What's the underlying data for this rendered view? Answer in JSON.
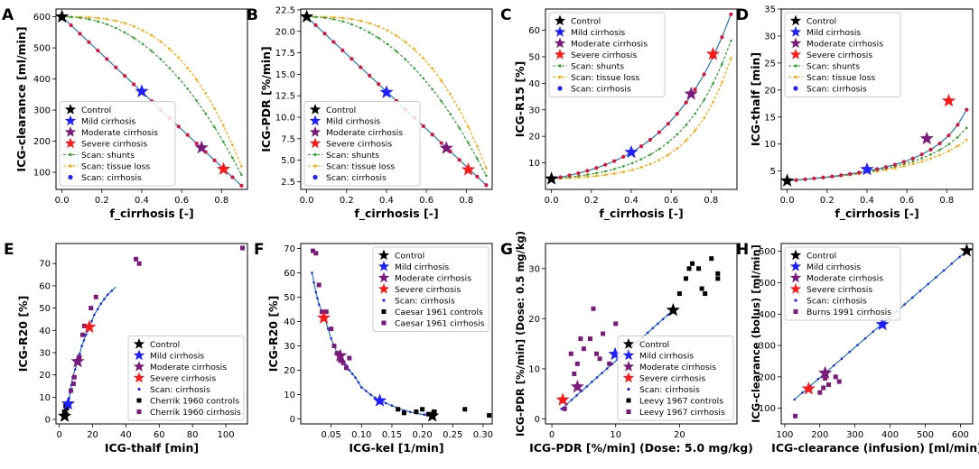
{
  "figure": {
    "legend_labels": {
      "control": "Control",
      "mild": "Mild cirrhosis",
      "moderate": "Moderate cirrhosis",
      "severe": "Severe cirrhosis",
      "shunts": "Scan: shunts",
      "tissue": "Scan: tissue loss",
      "cirrhosis": "Scan: cirrhosis"
    },
    "colors": {
      "control": "#000000",
      "mild": "#1f1fff",
      "moderate": "#7b1a7b",
      "severe": "#ff1a1a",
      "curve": "#1f77b4",
      "shunts": "#2ca02c",
      "tissue": "#ffa500",
      "scan_point_cirrhosis": "#1f1fff",
      "scan_point_dense": "#e0113c",
      "data_controls": "#000000",
      "data_cirrhosis": "#7b1a7b"
    }
  },
  "chart_data": [
    {
      "panel": "A",
      "type": "line",
      "xlabel": "f_cirrhosis [-]",
      "ylabel": "ICG-clearance [ml/min]",
      "xlim": [
        -0.03,
        0.93
      ],
      "ylim": [
        45,
        625
      ],
      "xticks": [
        0.0,
        0.2,
        0.4,
        0.6,
        0.8
      ],
      "yticks": [
        100,
        200,
        300,
        400,
        500,
        600
      ],
      "tick_decimals": 1,
      "ytick_decimals": 0,
      "legend": [
        "control",
        "mild",
        "moderate",
        "severe",
        "shunts",
        "tissue",
        "cirrhosis"
      ],
      "legend_pos": "bottom-left",
      "curves": {
        "cirrhosis": [
          600,
          57
        ],
        "shunts": [
          600,
          92
        ],
        "tissue": [
          600,
          120
        ]
      },
      "curve_power": {
        "cirrhosis": 1.0,
        "shunts": 2.2,
        "tissue": 3.0
      },
      "stars": {
        "control": [
          0.0,
          600
        ],
        "mild": [
          0.4,
          360
        ],
        "moderate": [
          0.7,
          179
        ],
        "severe": [
          0.81,
          110
        ]
      }
    },
    {
      "panel": "B",
      "type": "line",
      "xlabel": "f_cirrhosis [-]",
      "ylabel": "ICG-PDR [%/min]",
      "xlim": [
        -0.03,
        0.93
      ],
      "ylim": [
        1.6,
        22.6
      ],
      "xticks": [
        0.0,
        0.2,
        0.4,
        0.6,
        0.8
      ],
      "yticks": [
        2.5,
        5.0,
        7.5,
        10.0,
        12.5,
        15.0,
        17.5,
        20.0,
        22.5
      ],
      "tick_decimals": 1,
      "ytick_decimals": 1,
      "legend": [
        "control",
        "mild",
        "moderate",
        "severe",
        "shunts",
        "tissue",
        "cirrhosis"
      ],
      "legend_pos": "bottom-left",
      "curves": {
        "cirrhosis": [
          21.7,
          2.1
        ],
        "shunts": [
          21.7,
          3.2
        ],
        "tissue": [
          21.7,
          4.1
        ]
      },
      "curve_power": {
        "cirrhosis": 1.0,
        "shunts": 2.2,
        "tissue": 3.0
      },
      "stars": {
        "control": [
          0.0,
          21.7
        ],
        "mild": [
          0.4,
          12.9
        ],
        "moderate": [
          0.7,
          6.4
        ],
        "severe": [
          0.81,
          3.9
        ]
      }
    },
    {
      "panel": "C",
      "type": "line",
      "xlabel": "f_cirrhosis [-]",
      "ylabel": "ICG-R15 [%]",
      "xlim": [
        -0.03,
        0.93
      ],
      "ylim": [
        0,
        68
      ],
      "xticks": [
        0.0,
        0.2,
        0.4,
        0.6,
        0.8
      ],
      "yticks": [
        10,
        20,
        30,
        40,
        50,
        60
      ],
      "tick_decimals": 1,
      "ytick_decimals": 0,
      "legend": [
        "control",
        "mild",
        "moderate",
        "severe",
        "shunts",
        "tissue",
        "cirrhosis"
      ],
      "legend_pos": "top-left",
      "exp_curves": {
        "cirrhosis": [
          4,
          66
        ],
        "shunts": [
          4,
          56
        ],
        "tissue": [
          4,
          49.5
        ]
      },
      "exp_power": {
        "cirrhosis": 2.8,
        "shunts": 3.6,
        "tissue": 4.5
      },
      "stars": {
        "control": [
          0.0,
          4
        ],
        "mild": [
          0.4,
          14
        ],
        "moderate": [
          0.7,
          36
        ],
        "severe": [
          0.81,
          51
        ]
      }
    },
    {
      "panel": "D",
      "type": "line",
      "xlabel": "f_cirrhosis [-]",
      "ylabel": "ICG-thalf [min]",
      "xlim": [
        -0.03,
        0.93
      ],
      "ylim": [
        1.6,
        35
      ],
      "xticks": [
        0.0,
        0.2,
        0.4,
        0.6,
        0.8
      ],
      "yticks": [
        5,
        10,
        15,
        20,
        25,
        30,
        35
      ],
      "tick_decimals": 1,
      "ytick_decimals": 0,
      "legend": [
        "control",
        "mild",
        "moderate",
        "severe",
        "shunts",
        "tissue",
        "cirrhosis"
      ],
      "legend_pos": "top-left",
      "inv_curves": {
        "cirrhosis": [
          3.2,
          0.0957
        ],
        "shunts": [
          3.2,
          0.146
        ],
        "tissue": [
          3.2,
          0.197
        ]
      },
      "stars": {
        "control": [
          0.0,
          3.2
        ],
        "mild": [
          0.4,
          5.3
        ],
        "moderate": [
          0.7,
          11
        ],
        "severe": [
          0.81,
          18
        ]
      }
    },
    {
      "panel": "E",
      "type": "scatter",
      "xlabel": "ICG-thalf [min]",
      "ylabel": "ICG-R20 [%]",
      "xlim": [
        -2,
        113
      ],
      "ylim": [
        -2,
        79
      ],
      "xticks": [
        0,
        20,
        40,
        60,
        80,
        100
      ],
      "yticks": [
        0,
        10,
        20,
        30,
        40,
        50,
        60,
        70
      ],
      "tick_decimals": 0,
      "ytick_decimals": 0,
      "legend": [
        "control",
        "mild",
        "moderate",
        "severe",
        "scan_cirrhosis",
        "controls_data",
        "cirrhosis_data"
      ],
      "legend_labels_extra": {
        "scan_cirrhosis": "Scan: cirrhosis",
        "controls_data": "Cherrik 1960 controls",
        "cirrhosis_data": "Cherrik 1960 cirrhosis"
      },
      "legend_pos": "bottom-right",
      "curve": [
        [
          3.2,
          1.5
        ],
        [
          4,
          4
        ],
        [
          5.3,
          7
        ],
        [
          6.5,
          12
        ],
        [
          8,
          19
        ],
        [
          11,
          26
        ],
        [
          13.5,
          33
        ],
        [
          16,
          38
        ],
        [
          18,
          41.5
        ],
        [
          21,
          47
        ],
        [
          25,
          52
        ],
        [
          29,
          56
        ],
        [
          34,
          59.5
        ]
      ],
      "stars": {
        "control": [
          3.2,
          1.5
        ],
        "mild": [
          5.3,
          7
        ],
        "moderate": [
          11,
          26
        ],
        "severe": [
          18,
          41.5
        ]
      },
      "controls_points": [
        [
          3.5,
          1.5
        ],
        [
          4,
          2.5
        ],
        [
          3,
          3.5
        ],
        [
          4.5,
          5
        ],
        [
          3.8,
          6
        ]
      ],
      "cirrhosis_points": [
        [
          7,
          13
        ],
        [
          8.5,
          16
        ],
        [
          9,
          19
        ],
        [
          11,
          26
        ],
        [
          12,
          28
        ],
        [
          14,
          38
        ],
        [
          15,
          42
        ],
        [
          19,
          50
        ],
        [
          22,
          55
        ],
        [
          46,
          72
        ],
        [
          48,
          70
        ],
        [
          110,
          77
        ]
      ]
    },
    {
      "panel": "F",
      "type": "scatter",
      "xlabel": "ICG-kel [1/min]",
      "ylabel": "ICG-R20 [%]",
      "xlim": [
        0.0,
        0.315
      ],
      "ylim": [
        -2,
        72
      ],
      "xticks": [
        0.05,
        0.1,
        0.15,
        0.2,
        0.25,
        0.3
      ],
      "yticks": [
        0,
        10,
        20,
        30,
        40,
        50,
        60,
        70
      ],
      "tick_decimals": 2,
      "ytick_decimals": 0,
      "legend": [
        "control",
        "mild",
        "moderate",
        "severe",
        "scan_cirrhosis",
        "controls_data",
        "cirrhosis_data"
      ],
      "legend_labels_extra": {
        "scan_cirrhosis": "Scan: cirrhosis",
        "controls_data": "Caesar 1961 controls",
        "cirrhosis_data": "Caesar 1961 cirrhosis"
      },
      "legend_pos": "top-right",
      "curve": [
        [
          0.0185,
          60
        ],
        [
          0.025,
          52
        ],
        [
          0.03,
          47
        ],
        [
          0.04,
          41
        ],
        [
          0.05,
          33
        ],
        [
          0.06,
          27
        ],
        [
          0.07,
          24
        ],
        [
          0.08,
          20
        ],
        [
          0.09,
          17
        ],
        [
          0.1,
          13
        ],
        [
          0.115,
          10
        ],
        [
          0.13,
          7.5
        ],
        [
          0.15,
          5.5
        ],
        [
          0.17,
          3.5
        ],
        [
          0.19,
          2.3
        ],
        [
          0.2165,
          1.3
        ]
      ],
      "stars": {
        "control": [
          0.2165,
          1.3
        ],
        "mild": [
          0.13,
          7.5
        ],
        "moderate": [
          0.065,
          26
        ],
        "severe": [
          0.038,
          41.5
        ]
      },
      "controls_points": [
        [
          0.16,
          4
        ],
        [
          0.19,
          3
        ],
        [
          0.2,
          4
        ],
        [
          0.21,
          2
        ],
        [
          0.22,
          3
        ],
        [
          0.27,
          4
        ],
        [
          0.31,
          1.5
        ],
        [
          0.17,
          2.5
        ]
      ],
      "cirrhosis_points": [
        [
          0.02,
          69
        ],
        [
          0.025,
          68
        ],
        [
          0.03,
          55
        ],
        [
          0.035,
          44
        ],
        [
          0.042,
          44
        ],
        [
          0.05,
          37
        ],
        [
          0.055,
          30
        ],
        [
          0.06,
          27
        ],
        [
          0.065,
          24
        ],
        [
          0.07,
          23
        ],
        [
          0.075,
          21
        ],
        [
          0.08,
          25
        ],
        [
          0.13,
          7
        ]
      ]
    },
    {
      "panel": "G",
      "type": "scatter",
      "xlabel": "ICG-PDR [%/min] (Dose: 5.0 mg/kg)",
      "ylabel": "ICG-PDR [%/min] (Dose: 0.5 mg/kg)",
      "xlim": [
        -1,
        29
      ],
      "ylim": [
        -1,
        35
      ],
      "xticks": [
        0,
        10,
        20
      ],
      "yticks": [
        0,
        10,
        20,
        30
      ],
      "tick_decimals": 0,
      "ytick_decimals": 0,
      "legend": [
        "control",
        "mild",
        "moderate",
        "severe",
        "scan_cirrhosis",
        "controls_data",
        "cirrhosis_data"
      ],
      "legend_labels_extra": {
        "scan_cirrhosis": "Scan: cirrhosis",
        "controls_data": "Leevy 1967 controls",
        "cirrhosis_data": "Leevy 1967 cirrhosis"
      },
      "legend_pos": "bottom-right",
      "curve": [
        [
          1.5,
          2.0
        ],
        [
          19.0,
          21.7
        ]
      ],
      "stars": {
        "control": [
          19.0,
          21.7
        ],
        "mild": [
          9.9,
          12.9
        ],
        "moderate": [
          4.0,
          6.4
        ],
        "severe": [
          1.7,
          3.8
        ]
      },
      "controls_points": [
        [
          20,
          25
        ],
        [
          21,
          28
        ],
        [
          21.5,
          30
        ],
        [
          22,
          31
        ],
        [
          23,
          30
        ],
        [
          23.5,
          26
        ],
        [
          24,
          25
        ],
        [
          25,
          32
        ],
        [
          26,
          28
        ],
        [
          26,
          29
        ]
      ],
      "cirrhosis_points": [
        [
          2,
          2
        ],
        [
          3,
          13
        ],
        [
          3.5,
          9
        ],
        [
          4,
          11
        ],
        [
          4.5,
          16
        ],
        [
          5,
          14
        ],
        [
          6,
          16
        ],
        [
          6.5,
          22
        ],
        [
          7,
          13
        ],
        [
          7.5,
          12
        ],
        [
          8,
          17
        ],
        [
          9,
          11
        ],
        [
          10,
          19
        ]
      ]
    },
    {
      "panel": "H",
      "type": "scatter",
      "xlabel": "ICG-clearance (infusion) [ml/min]",
      "ylabel": "ICG-clearance (bolus) [ml/min]",
      "xlim": [
        90,
        635
      ],
      "ylim": [
        50,
        625
      ],
      "xticks": [
        100,
        200,
        300,
        400,
        500,
        600
      ],
      "yticks": [
        100,
        200,
        300,
        400,
        500,
        600
      ],
      "tick_decimals": 0,
      "ytick_decimals": 0,
      "legend": [
        "control",
        "mild",
        "moderate",
        "severe",
        "scan_cirrhosis",
        "cirrhosis_data"
      ],
      "legend_labels_extra": {
        "scan_cirrhosis": "Scan: cirrhosis",
        "cirrhosis_data": "Burns 1991 cirrhosis"
      },
      "legend_pos": "top-left",
      "curve": [
        [
          128,
          128
        ],
        [
          620,
          604
        ]
      ],
      "stars": {
        "control": [
          618,
          602
        ],
        "mild": [
          378,
          367
        ],
        "moderate": [
          215,
          212
        ],
        "severe": [
          168,
          162
        ]
      },
      "controls_points": [],
      "cirrhosis_points": [
        [
          130,
          75
        ],
        [
          200,
          150
        ],
        [
          210,
          165
        ],
        [
          215,
          195
        ],
        [
          225,
          175
        ],
        [
          245,
          200
        ],
        [
          255,
          185
        ]
      ]
    }
  ],
  "panels_layout_order": [
    "A",
    "B",
    "C",
    "D",
    "E",
    "F",
    "G",
    "H"
  ]
}
